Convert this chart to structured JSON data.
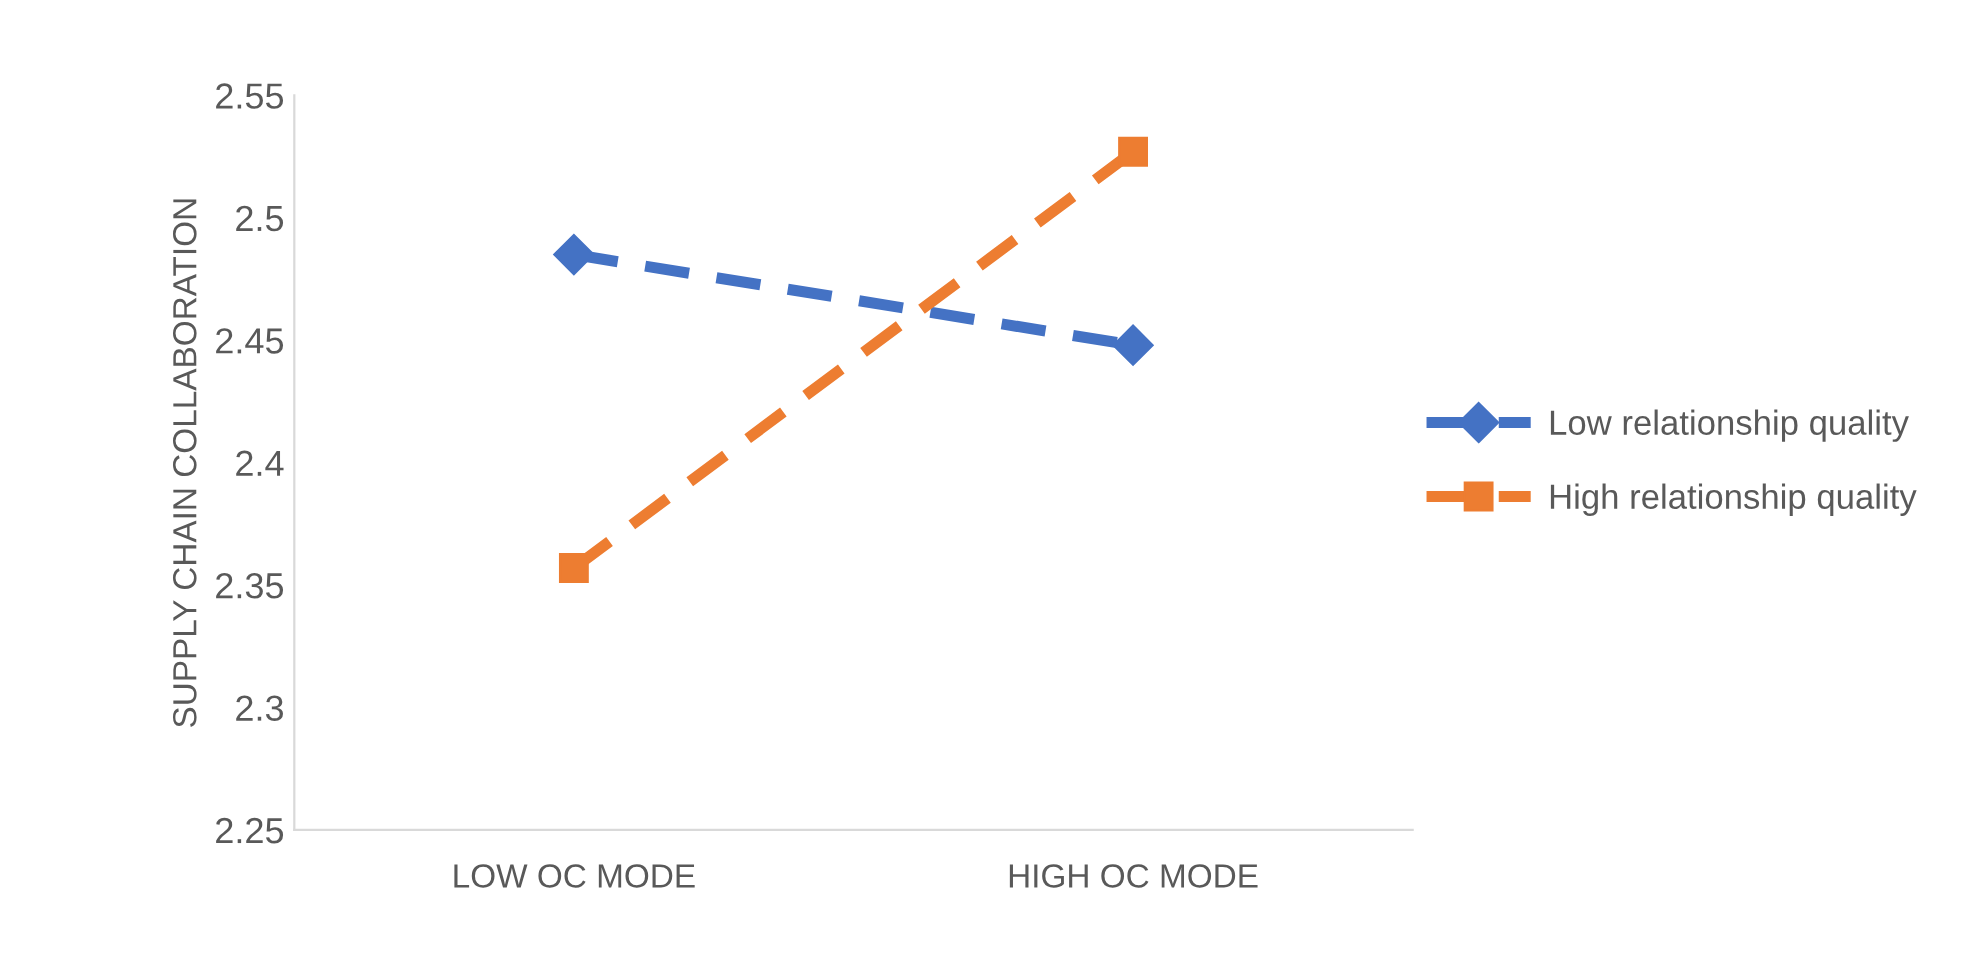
{
  "chart_data": {
    "type": "line",
    "ylabel": "SUPPLY CHAIN COLLABORATION",
    "categories": [
      "LOW OC MODE",
      "HIGH OC MODE"
    ],
    "series": [
      {
        "name": "Low relationship quality",
        "color": "#4472c4",
        "values": [
          2.485,
          2.448
        ],
        "marker": "diamond",
        "line_style": "dashed"
      },
      {
        "name": "High relationship quality",
        "color": "#ed7d31",
        "values": [
          2.357,
          2.527
        ],
        "marker": "square",
        "line_style": "dashed"
      }
    ],
    "ylim": [
      2.25,
      2.55
    ],
    "yticks": [
      2.25,
      2.3,
      2.35,
      2.4,
      2.45,
      2.5,
      2.55
    ],
    "grid": false,
    "legend": "right"
  }
}
